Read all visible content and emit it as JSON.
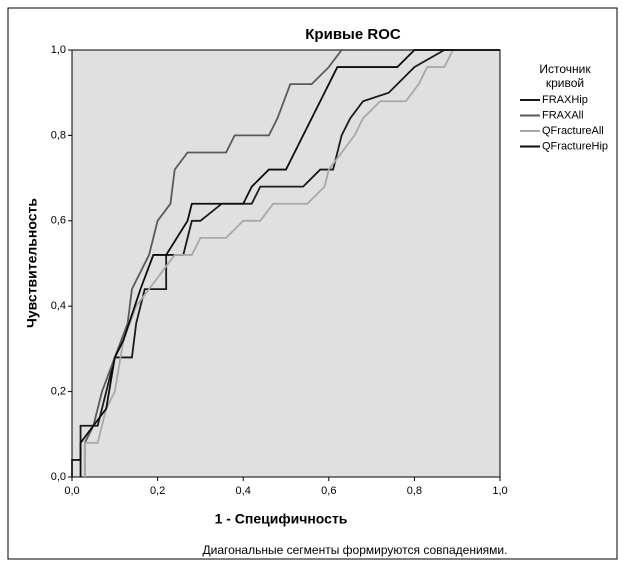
{
  "chart_data": {
    "type": "line",
    "title": "Кривые ROC",
    "x_label": "1 - Специфичность",
    "y_label": "Чувствительность",
    "footnote": "Диагональные сегменты формируются совпадениями.",
    "legend_title": [
      "Источник",
      "кривой"
    ],
    "legend_position": "right",
    "xlim": [
      0,
      1
    ],
    "ylim": [
      0,
      1
    ],
    "xticks": [
      {
        "value": 0,
        "label": "0,0"
      },
      {
        "value": 0.2,
        "label": "0,2"
      },
      {
        "value": 0.4,
        "label": "0,4"
      },
      {
        "value": 0.6,
        "label": "0,6"
      },
      {
        "value": 0.8,
        "label": "0,8"
      },
      {
        "value": 1,
        "label": "1,0"
      }
    ],
    "yticks": [
      {
        "value": 0,
        "label": "0,0"
      },
      {
        "value": 0.2,
        "label": "0,2"
      },
      {
        "value": 0.4,
        "label": "0,4"
      },
      {
        "value": 0.6,
        "label": "0,6"
      },
      {
        "value": 0.8,
        "label": "0,8"
      },
      {
        "value": 1,
        "label": "1,0"
      }
    ],
    "series": [
      {
        "name": "FRAXHip",
        "color": "#1a1a1a",
        "x": [
          0,
          0,
          0.02,
          0.02,
          0.06,
          0.08,
          0.1,
          0.14,
          0.15,
          0.16,
          0.17,
          0.22,
          0.22,
          0.26,
          0.27,
          0.28,
          0.3,
          0.35,
          0.42,
          0.44,
          0.54,
          0.58,
          0.61,
          0.63,
          0.65,
          0.68,
          0.74,
          0.8,
          0.87,
          1
        ],
        "values": [
          0,
          0.04,
          0.04,
          0.12,
          0.12,
          0.2,
          0.28,
          0.28,
          0.36,
          0.4,
          0.44,
          0.44,
          0.52,
          0.52,
          0.56,
          0.6,
          0.6,
          0.64,
          0.64,
          0.68,
          0.68,
          0.72,
          0.72,
          0.8,
          0.84,
          0.88,
          0.9,
          0.96,
          1,
          1
        ]
      },
      {
        "name": "FRAXAll",
        "color": "#5a5a5a",
        "x": [
          0.03,
          0.03,
          0.05,
          0.07,
          0.1,
          0.13,
          0.14,
          0.18,
          0.2,
          0.23,
          0.24,
          0.27,
          0.36,
          0.38,
          0.46,
          0.48,
          0.51,
          0.56,
          0.6,
          0.63,
          1
        ],
        "values": [
          0,
          0.08,
          0.12,
          0.2,
          0.28,
          0.36,
          0.44,
          0.52,
          0.6,
          0.64,
          0.72,
          0.76,
          0.76,
          0.8,
          0.8,
          0.84,
          0.92,
          0.92,
          0.96,
          1,
          1
        ]
      },
      {
        "name": "QFractureAll",
        "color": "#a8a8a8",
        "x": [
          0.03,
          0.03,
          0.06,
          0.08,
          0.1,
          0.12,
          0.15,
          0.18,
          0.21,
          0.24,
          0.28,
          0.3,
          0.36,
          0.4,
          0.44,
          0.47,
          0.55,
          0.59,
          0.6,
          0.63,
          0.66,
          0.68,
          0.72,
          0.78,
          0.81,
          0.83,
          0.87,
          0.89,
          1
        ],
        "values": [
          0,
          0.08,
          0.08,
          0.16,
          0.2,
          0.32,
          0.4,
          0.44,
          0.48,
          0.52,
          0.52,
          0.56,
          0.56,
          0.6,
          0.6,
          0.64,
          0.64,
          0.68,
          0.72,
          0.76,
          0.8,
          0.84,
          0.88,
          0.88,
          0.92,
          0.96,
          0.96,
          1,
          1
        ]
      },
      {
        "name": "QFractureHip",
        "color": "#0d0d0d",
        "x": [
          0.02,
          0.02,
          0.05,
          0.08,
          0.1,
          0.12,
          0.16,
          0.19,
          0.22,
          0.27,
          0.28,
          0.4,
          0.42,
          0.46,
          0.5,
          0.52,
          0.54,
          0.58,
          0.62,
          0.76,
          0.8,
          1
        ],
        "values": [
          0,
          0.08,
          0.12,
          0.16,
          0.28,
          0.32,
          0.44,
          0.52,
          0.52,
          0.6,
          0.64,
          0.64,
          0.68,
          0.72,
          0.72,
          0.76,
          0.8,
          0.88,
          0.96,
          0.96,
          1,
          1
        ]
      }
    ]
  }
}
